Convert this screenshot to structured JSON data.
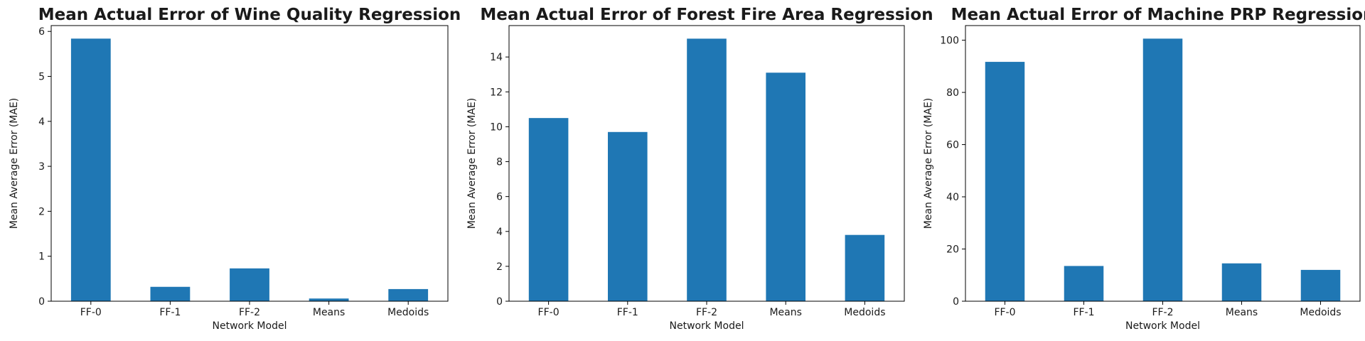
{
  "chart_data": [
    {
      "type": "bar",
      "title": "Mean Actual Error of Wine Quality Regression",
      "xlabel": "Network Model",
      "ylabel": "Mean Average Error (MAE)",
      "categories": [
        "FF-0",
        "FF-1",
        "FF-2",
        "Means",
        "Medoids"
      ],
      "values": [
        5.84,
        0.32,
        0.73,
        0.06,
        0.27
      ],
      "ylim": [
        0,
        6.13
      ],
      "yticks": [
        0,
        1,
        2,
        3,
        4,
        5,
        6
      ],
      "color": "#1f77b4",
      "grid": false
    },
    {
      "type": "bar",
      "title": "Mean Actual Error of Forest Fire Area Regression",
      "xlabel": "Network Model",
      "ylabel": "Mean Average Error (MAE)",
      "categories": [
        "FF-0",
        "FF-1",
        "FF-2",
        "Means",
        "Medoids"
      ],
      "values": [
        10.5,
        9.7,
        15.05,
        13.1,
        3.8
      ],
      "ylim": [
        0,
        15.8
      ],
      "yticks": [
        0,
        2,
        4,
        6,
        8,
        10,
        12,
        14
      ],
      "color": "#1f77b4",
      "grid": false
    },
    {
      "type": "bar",
      "title": "Mean Actual Error of Machine PRP Regression",
      "xlabel": "Network Model",
      "ylabel": "Mean Average Error (MAE)",
      "categories": [
        "FF-0",
        "FF-1",
        "FF-2",
        "Means",
        "Medoids"
      ],
      "values": [
        91.7,
        13.5,
        100.6,
        14.5,
        12.0
      ],
      "ylim": [
        0,
        105.6
      ],
      "yticks": [
        0,
        20,
        40,
        60,
        80,
        100
      ],
      "color": "#1f77b4",
      "grid": false
    }
  ]
}
